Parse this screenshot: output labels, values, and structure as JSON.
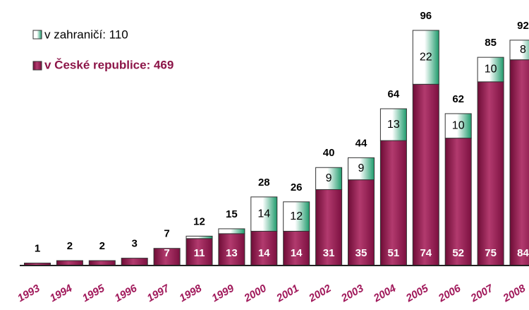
{
  "chart_data": {
    "type": "stacked_bar",
    "categories": [
      "1993",
      "1994",
      "1995",
      "1996",
      "1997",
      "1998",
      "1999",
      "2000",
      "2001",
      "2002",
      "2003",
      "2004",
      "2005",
      "2006",
      "2007",
      "2008"
    ],
    "series": [
      {
        "name": "v České republice: 469",
        "color": "#8c1548",
        "values": [
          1,
          2,
          2,
          3,
          7,
          11,
          13,
          14,
          14,
          31,
          35,
          51,
          74,
          52,
          75,
          84
        ],
        "value_labels": [
          null,
          null,
          null,
          null,
          "7",
          "11",
          "13",
          "14",
          "14",
          "31",
          "35",
          "51",
          "74",
          "52",
          "75",
          "84"
        ]
      },
      {
        "name": "v zahraničí: 110",
        "color": "#1e9b6c",
        "values": [
          0,
          0,
          0,
          0,
          0,
          1,
          2,
          14,
          12,
          9,
          9,
          13,
          22,
          10,
          10,
          8
        ],
        "value_labels": [
          null,
          null,
          null,
          null,
          null,
          null,
          null,
          "14",
          "12",
          "9",
          "9",
          "13",
          "22",
          "10",
          "10",
          "8"
        ]
      }
    ],
    "total_labels": [
      1,
      2,
      2,
      3,
      7,
      12,
      15,
      28,
      26,
      40,
      44,
      64,
      96,
      62,
      85,
      92
    ],
    "ylim": [
      0,
      96
    ]
  }
}
